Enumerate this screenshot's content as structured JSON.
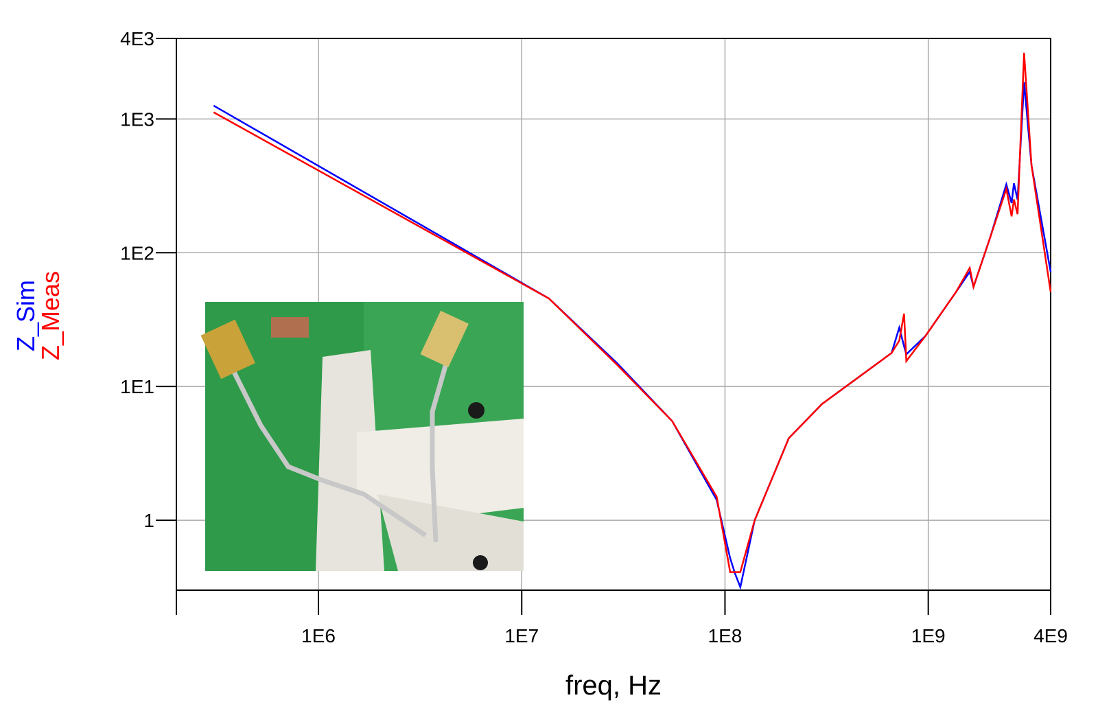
{
  "chart_data": {
    "type": "line",
    "xlabel": "freq, Hz",
    "x": [
      305000,
      13600000,
      29500000,
      55000000,
      91000000,
      106000000,
      112000000,
      119000000,
      140000000,
      206000000,
      300000000,
      660000000,
      720000000,
      760000000,
      780000000,
      970000000,
      1370000000,
      1600000000,
      1670000000,
      2020000000,
      2420000000,
      2570000000,
      2640000000,
      2750000000,
      2960000000,
      3220000000,
      4000000000
    ],
    "series": [
      {
        "name": "Z_Sim",
        "color": "#0000ff",
        "values": [
          1259,
          45.5,
          14.9,
          5.5,
          1.42,
          0.52,
          0.4,
          0.316,
          1,
          4.1,
          7.4,
          17.8,
          27.5,
          20,
          17.4,
          23.9,
          51,
          72,
          55.6,
          131,
          324,
          235,
          330,
          250,
          1888,
          450,
          72
        ]
      },
      {
        "name": "Z_Meas",
        "color": "#ff0000",
        "values": [
          1122,
          45.5,
          14.5,
          5.5,
          1.5,
          0.41,
          0.41,
          0.41,
          1,
          4.1,
          7.4,
          17.8,
          22,
          35,
          15.5,
          23.9,
          51,
          77,
          55.6,
          131,
          300,
          187,
          250,
          194,
          3126,
          450,
          51
        ]
      }
    ],
    "xlim": [
      200000,
      4000000000
    ],
    "ylim": [
      0.3,
      4000
    ],
    "xticks": [
      {
        "value": 1000000,
        "label": "1E6"
      },
      {
        "value": 10000000,
        "label": "1E7"
      },
      {
        "value": 100000000,
        "label": "1E8"
      },
      {
        "value": 1000000000,
        "label": "1E9"
      },
      {
        "value": 4000000000,
        "label": "4E9"
      }
    ],
    "yticks": [
      1,
      {
        "value": 10,
        "label": "1E1"
      },
      {
        "value": 100,
        "label": "1E2"
      },
      {
        "value": 1000,
        "label": "1E3"
      },
      {
        "value": 4000,
        "label": "4E3"
      }
    ],
    "xlog": true,
    "ylog": true,
    "grid": true,
    "legend": "left"
  }
}
